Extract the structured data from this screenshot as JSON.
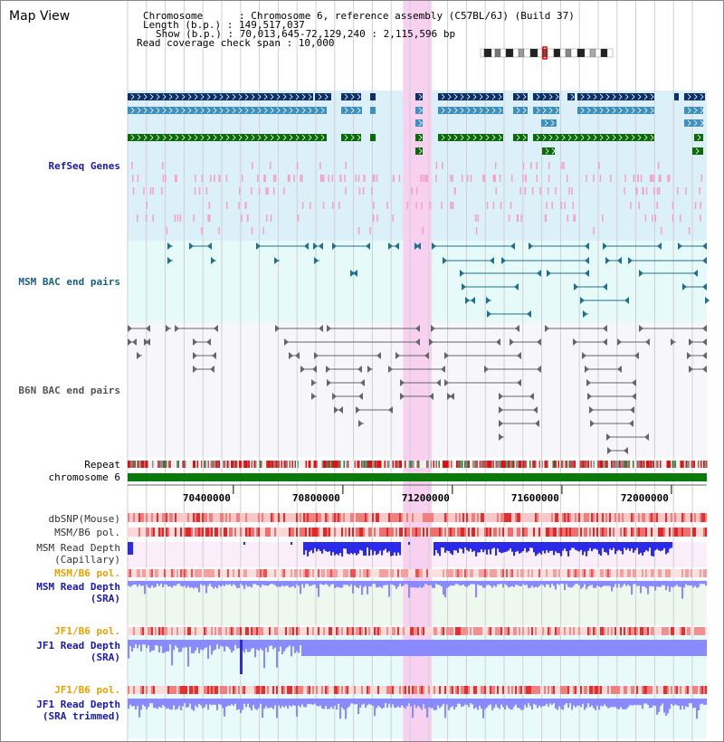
{
  "header": {
    "title": "Map View",
    "lines": [
      "Chromosome      : Chromosome 6, reference assembly (C57BL/6J) (Build 37)",
      "Length (b.p.) : 149,517,037",
      "Show (b.p.) : 70,013,645-72,129,240 : 2,115,596 bp",
      "Read coverage check span : 10,000"
    ]
  },
  "tracks": {
    "refseq": {
      "label": "RefSeq Genes",
      "color": "#1a1aa6"
    },
    "msm_bac": {
      "label": "MSM BAC end pairs",
      "color": "#1a5f80"
    },
    "b6n_bac": {
      "label": "B6N BAC end pairs",
      "color": "#555555"
    },
    "repeat": {
      "label": "Repeat",
      "color": "#000000"
    },
    "chromosome": {
      "label": "chromosome 6",
      "color": "#000000"
    },
    "dbsnp": {
      "label": "dbSNP(Mouse)",
      "color": "#333333"
    },
    "msm_b6_pol": {
      "label": "MSM/B6 pol.",
      "color": "#333333"
    },
    "msm_read_depth_cap": {
      "label": "MSM Read Depth",
      "sub": "(Capillary)",
      "color": "#333333"
    },
    "msm_b6_pol_sra": {
      "label": "MSM/B6 pol.",
      "color": "#e8a000"
    },
    "msm_read_depth_sra": {
      "label": "MSM Read Depth",
      "sub": "(SRA)",
      "color": "#1a1aa6"
    },
    "jf1_b6_pol": {
      "label": "JF1/B6 pol.",
      "color": "#e8a000"
    },
    "jf1_read_depth": {
      "label": "JF1 Read Depth",
      "sub": "(SRA)",
      "color": "#1a1aa6"
    },
    "jf1_b6_pol_trim": {
      "label": "JF1/B6 pol.",
      "color": "#e8a000"
    },
    "jf1_read_depth_trim": {
      "label": "JF1 Read Depth",
      "sub": "(SRA trimmed)",
      "color": "#1a1aa6"
    }
  },
  "axis": {
    "ticks": [
      "70400000",
      "70800000",
      "71200000",
      "71600000",
      "72000000"
    ],
    "tick_values": [
      70400000,
      70800000,
      71200000,
      71600000,
      72000000
    ],
    "range": [
      70013645,
      72129240
    ]
  },
  "highlight_region": {
    "start": 71020000,
    "end": 71125000,
    "color": "#f8d0f0"
  },
  "colors": {
    "refseq_dark": "#0b2f6b",
    "refseq_mid": "#3f8fbf",
    "refseq_green": "#0b6b0b",
    "refseq_bg": "#dcf0fa",
    "msm_bg": "#e6fafa",
    "b6n_bg": "#f7f7fb",
    "chromosome_bar": "#0a7a0a",
    "depth_blue": "#2a2ae8",
    "depth_light": "#8a8aff"
  }
}
